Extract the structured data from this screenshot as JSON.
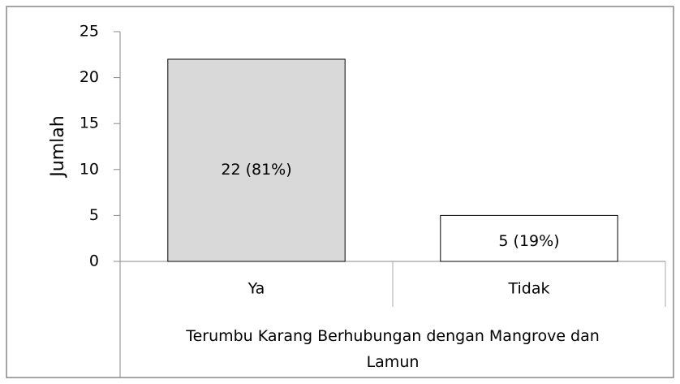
{
  "chart_data": {
    "type": "bar",
    "categories": [
      "Ya",
      "Tidak"
    ],
    "values": [
      22,
      5
    ],
    "value_labels": [
      "22 (81%)",
      "5 (19%)"
    ],
    "colors": [
      "#d9d9d9",
      "#ffffff"
    ],
    "ylabel": "Jumlah",
    "xlabel": "Terumbu Karang Berhubungan dengan Mangrove dan Lamun",
    "ylim": [
      0,
      25
    ],
    "yticks": [
      0,
      5,
      10,
      15,
      20,
      25
    ],
    "grid": false
  }
}
